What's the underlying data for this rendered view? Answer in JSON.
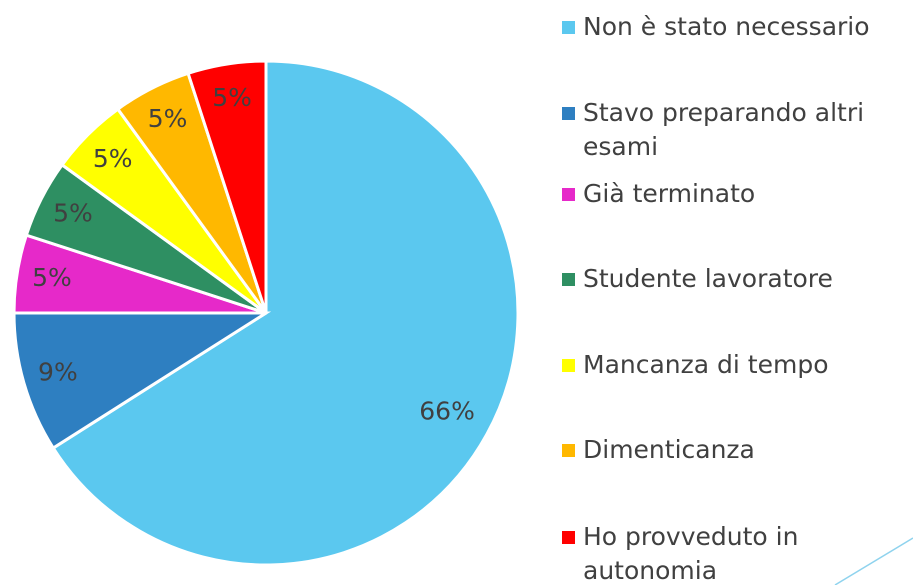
{
  "chart_data": {
    "type": "pie",
    "categories": [
      "Non è stato necessario",
      "Stavo preparando altri esami",
      "Già terminato",
      "Studente lavoratore",
      "Mancanza di tempo",
      "Dimenticanza",
      "Ho provveduto in autonomia"
    ],
    "values": [
      66,
      9,
      5,
      5,
      5,
      5,
      5
    ],
    "value_labels": [
      "66%",
      "9%",
      "5%",
      "5%",
      "5%",
      "5%",
      "5%"
    ],
    "colors": [
      "#5bc8ef",
      "#2e7fc1",
      "#e629c9",
      "#2e8f62",
      "#ffff00",
      "#ffb800",
      "#ff0000"
    ],
    "legend": "right"
  }
}
